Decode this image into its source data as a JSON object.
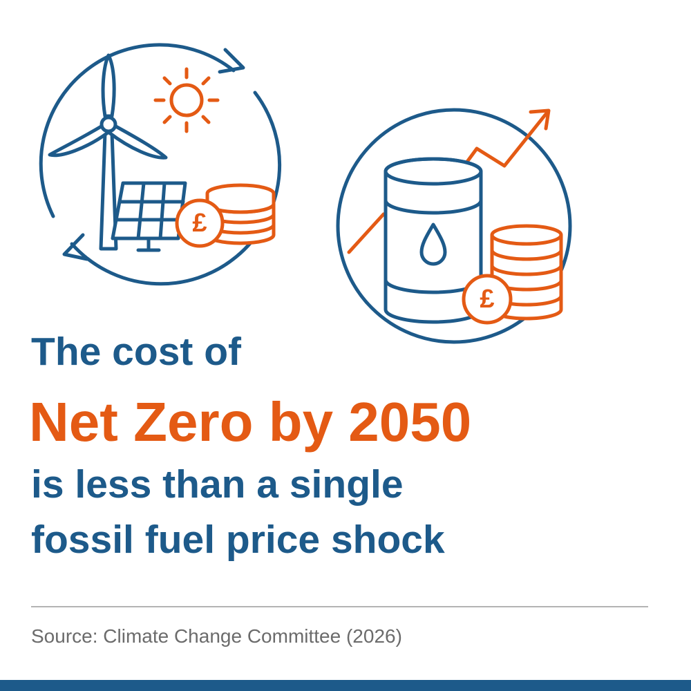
{
  "headline": {
    "line1": "The cost of",
    "line2": "Net Zero by 2050",
    "line3": "is less than a single",
    "line4": "fossil fuel price shock"
  },
  "icons": {
    "renewables_coin": "£",
    "fossil_coin": "£"
  },
  "source": "Source: Climate Change Committee (2026)"
}
